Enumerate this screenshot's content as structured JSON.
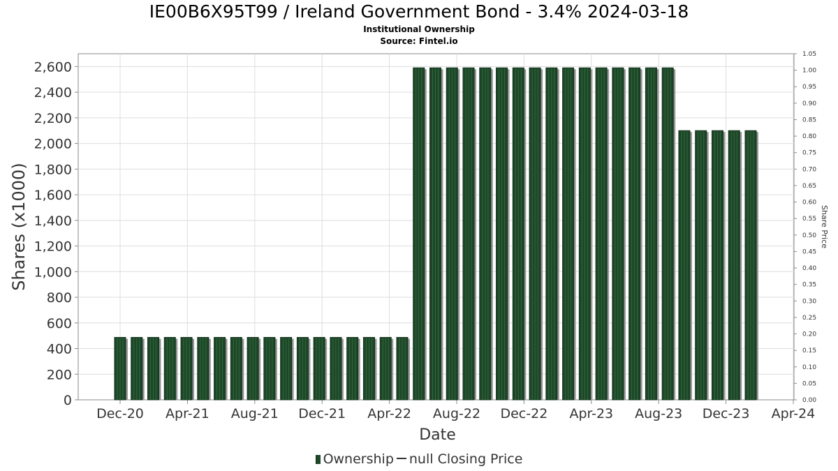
{
  "title": "IE00B6X95T99 / Ireland Government Bond - 3.4% 2024-03-18",
  "subtitle_lines": [
    "Institutional Ownership",
    "Source: Fintel.io"
  ],
  "legend": {
    "ownership_label": "Ownership",
    "price_label": "null Closing Price"
  },
  "colors": {
    "bar": "#1e4628",
    "bar_shadow": "#8c8c8c",
    "grid": "#dddddd",
    "axis": "#888888"
  },
  "chart_data": {
    "type": "bar",
    "xlabel": "Date",
    "ylabel": "Shares (x1000)",
    "y2label": "Share Price",
    "ylim": [
      0,
      2700
    ],
    "y2lim": [
      0,
      1.05
    ],
    "grid": true,
    "legend_position": "bottom",
    "x_tick_labels": [
      "Dec-20",
      "Apr-21",
      "Aug-21",
      "Dec-21",
      "Apr-22",
      "Aug-22",
      "Dec-22",
      "Apr-23",
      "Aug-23",
      "Dec-23",
      "Apr-24"
    ],
    "y_tick_labels": [
      "0",
      "200",
      "400",
      "600",
      "800",
      "1,000",
      "1,200",
      "1,400",
      "1,600",
      "1,800",
      "2,000",
      "2,200",
      "2,400",
      "2,600"
    ],
    "y2_tick_labels": [
      "0.00",
      "0.05",
      "0.10",
      "0.15",
      "0.20",
      "0.25",
      "0.30",
      "0.35",
      "0.40",
      "0.45",
      "0.50",
      "0.55",
      "0.60",
      "0.65",
      "0.70",
      "0.75",
      "0.80",
      "0.85",
      "0.90",
      "0.95",
      "1.00",
      "1.05"
    ],
    "series": [
      {
        "name": "Ownership",
        "x": [
          "2020-12-01",
          "2020-12-31",
          "2021-01-30",
          "2021-03-01",
          "2021-03-31",
          "2021-04-30",
          "2021-05-30",
          "2021-06-29",
          "2021-07-29",
          "2021-08-28",
          "2021-09-27",
          "2021-10-27",
          "2021-11-26",
          "2021-12-26",
          "2022-01-25",
          "2022-02-24",
          "2022-03-26",
          "2022-04-25",
          "2022-05-25",
          "2022-06-24",
          "2022-07-24",
          "2022-08-23",
          "2022-09-22",
          "2022-10-22",
          "2022-11-21",
          "2022-12-21",
          "2023-01-20",
          "2023-02-19",
          "2023-03-21",
          "2023-04-20",
          "2023-05-20",
          "2023-06-19",
          "2023-07-19",
          "2023-08-18",
          "2023-09-17",
          "2023-10-17",
          "2023-11-16",
          "2023-12-16",
          "2024-01-15"
        ],
        "values": [
          487,
          487,
          487,
          487,
          487,
          487,
          487,
          487,
          487,
          487,
          487,
          487,
          487,
          487,
          487,
          487,
          487,
          487,
          2590,
          2590,
          2590,
          2590,
          2590,
          2590,
          2590,
          2590,
          2590,
          2590,
          2590,
          2590,
          2590,
          2590,
          2590,
          2590,
          2100,
          2100,
          2100,
          2100,
          2100
        ]
      }
    ]
  }
}
